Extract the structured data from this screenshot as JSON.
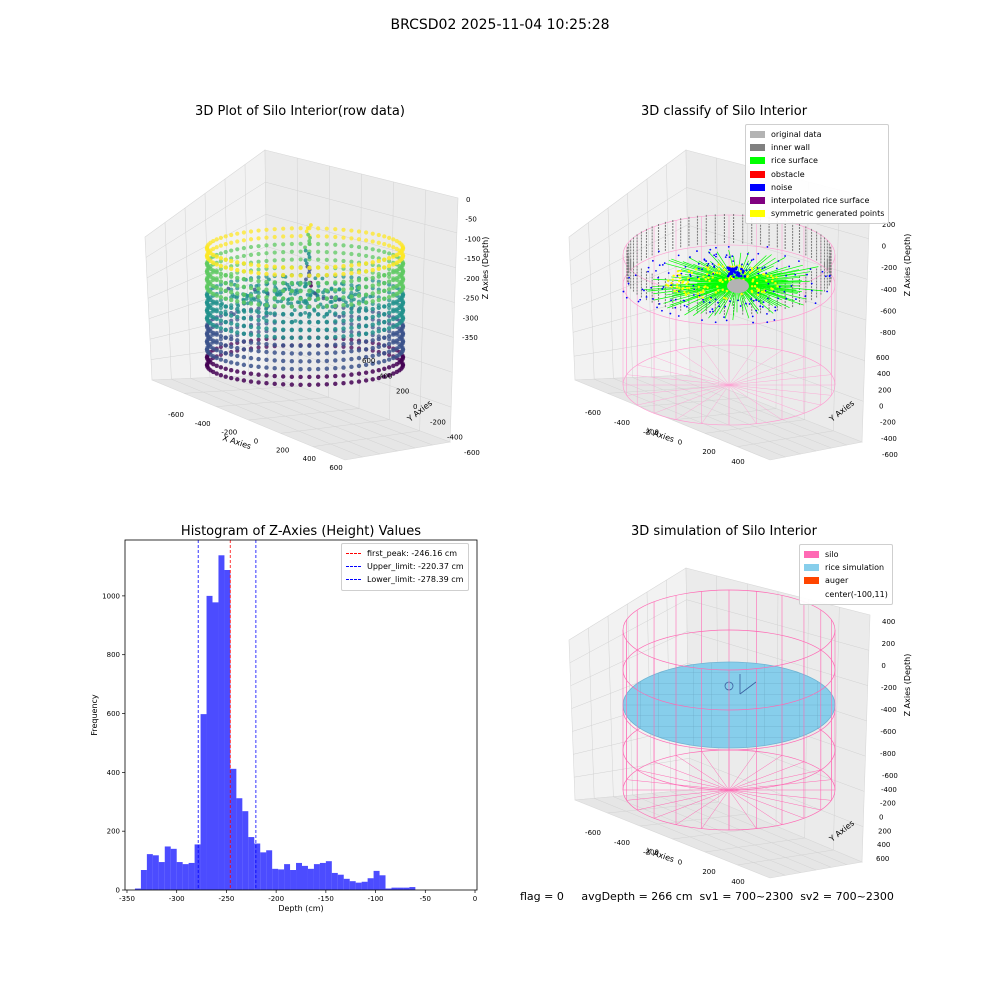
{
  "figure": {
    "suptitle": "BRCSD02 2025-11-04 10:25:28",
    "footer": "flag = 0     avgDepth = 266 cm  sv1 = 700~2300  sv2 = 700~2300"
  },
  "panels": {
    "raw": {
      "title": "3D Plot of Silo Interior(row data)",
      "xlabel": "X Axies",
      "ylabel": "Y Axies",
      "zlabel": "Z Axies (Depth)",
      "xticks": [
        "-600",
        "-400",
        "-200",
        "0",
        "200",
        "400",
        "600"
      ],
      "yticks": [
        "-600",
        "-400",
        "-200",
        "0",
        "200",
        "400",
        "600"
      ],
      "zticks": [
        "0",
        "-50",
        "-100",
        "-150",
        "-200",
        "-250",
        "-300",
        "-350"
      ]
    },
    "classify": {
      "title": "3D classify of Silo Interior",
      "xlabel": "X Axies",
      "ylabel": "Y Axies",
      "zlabel": "Z Axies (Depth)",
      "xticks": [
        "-600",
        "-400",
        "-200",
        "0",
        "200",
        "400"
      ],
      "yticks": [
        "-600",
        "-400",
        "-200",
        "0",
        "200",
        "400",
        "600"
      ],
      "zticks": [
        "200",
        "0",
        "-200",
        "-400",
        "-600",
        "-800"
      ],
      "legend": [
        {
          "label": "original data",
          "color": "#b3b3b3"
        },
        {
          "label": "inner wall",
          "color": "#808080"
        },
        {
          "label": "rice surface",
          "color": "#00ff00"
        },
        {
          "label": "obstacle",
          "color": "#ff0000"
        },
        {
          "label": "noise",
          "color": "#0000ff"
        },
        {
          "label": "interpolated rice surface",
          "color": "#800080"
        },
        {
          "label": "symmetric generated points",
          "color": "#ffff00"
        }
      ]
    },
    "simulation": {
      "title": "3D simulation of Silo Interior",
      "xlabel": "X Axies",
      "ylabel": "Y Axies",
      "zlabel": "Z Axies (Depth)",
      "xticks": [
        "-600",
        "-400",
        "-200",
        "0",
        "200",
        "400"
      ],
      "yticks": [
        "-600",
        "-400",
        "-200",
        "0",
        "200",
        "400",
        "600"
      ],
      "zticks": [
        "400",
        "200",
        "0",
        "-200",
        "-400",
        "-600",
        "-800"
      ],
      "legend": [
        {
          "label": "silo",
          "color": "#ff69b4"
        },
        {
          "label": "rice simulation",
          "color": "#87ceeb"
        },
        {
          "label": "auger",
          "color": "#ff4500"
        },
        {
          "label": "center(-100,11)",
          "color": ""
        }
      ]
    }
  },
  "chart_data": [
    {
      "type": "scatter",
      "panel": "raw",
      "title": "3D Plot of Silo Interior(row data)",
      "xlabel": "X Axies",
      "ylabel": "Y Axies",
      "zlabel": "Z Axies (Depth)",
      "xlim": [
        -700,
        650
      ],
      "ylim": [
        -650,
        650
      ],
      "zlim": [
        -350,
        0
      ],
      "colormap": "viridis",
      "grid": true
    },
    {
      "type": "scatter",
      "panel": "classify",
      "title": "3D classify of Silo Interior",
      "xlabel": "X Axies",
      "ylabel": "Y Axies",
      "zlabel": "Z Axies (Depth)",
      "xlim": [
        -700,
        500
      ],
      "ylim": [
        -650,
        650
      ],
      "zlim": [
        -900,
        300
      ],
      "series": [
        {
          "name": "original data",
          "color": "#b3b3b3"
        },
        {
          "name": "inner wall",
          "color": "#808080"
        },
        {
          "name": "rice surface",
          "color": "#00ff00"
        },
        {
          "name": "obstacle",
          "color": "#ff0000"
        },
        {
          "name": "noise",
          "color": "#0000ff"
        },
        {
          "name": "interpolated rice surface",
          "color": "#800080"
        },
        {
          "name": "symmetric generated points",
          "color": "#ffff00"
        }
      ],
      "legend_position": "top-right",
      "grid": true
    },
    {
      "type": "bar",
      "panel": "histogram",
      "title": "Histogram of Z-Axies (Height) Values",
      "xlabel": "Depth (cm)",
      "ylabel": "Frequency",
      "xlim": [
        -352,
        2
      ],
      "ylim": [
        0,
        1190
      ],
      "xticks": [
        -350,
        -300,
        -250,
        -200,
        -150,
        -100,
        -50,
        0
      ],
      "yticks": [
        0,
        200,
        400,
        600,
        800,
        1000
      ],
      "bin_start": -342,
      "bin_width": 6,
      "values": [
        5,
        68,
        122,
        118,
        95,
        148,
        140,
        95,
        88,
        92,
        155,
        598,
        1000,
        978,
        1138,
        1088,
        412,
        312,
        268,
        180,
        158,
        128,
        135,
        72,
        70,
        88,
        68,
        92,
        82,
        72,
        88,
        92,
        98,
        58,
        52,
        38,
        30,
        25,
        28,
        40,
        65,
        50,
        5,
        8,
        8,
        8,
        10
      ],
      "bar_color": "#0000ff",
      "lines": [
        {
          "name": "first_peak: -246.16 cm",
          "x": -246.16,
          "color": "#ff0000"
        },
        {
          "name": "Upper_limit: -220.37 cm",
          "x": -220.37,
          "color": "#0000ff"
        },
        {
          "name": "Lower_limit: -278.39 cm",
          "x": -278.39,
          "color": "#0000ff"
        }
      ],
      "legend_position": "top-right",
      "grid": false
    },
    {
      "type": "scatter",
      "panel": "simulation",
      "title": "3D simulation of Silo Interior",
      "xlabel": "X Axies",
      "ylabel": "Y Axies",
      "zlabel": "Z Axies (Depth)",
      "xlim": [
        -700,
        500
      ],
      "ylim": [
        -650,
        650
      ],
      "zlim": [
        -900,
        450
      ],
      "series": [
        {
          "name": "silo",
          "color": "#ff69b4"
        },
        {
          "name": "rice simulation",
          "color": "#87ceeb"
        },
        {
          "name": "auger",
          "color": "#ff4500"
        }
      ],
      "center": [
        -100,
        11
      ],
      "legend_position": "top-right",
      "grid": true
    }
  ]
}
